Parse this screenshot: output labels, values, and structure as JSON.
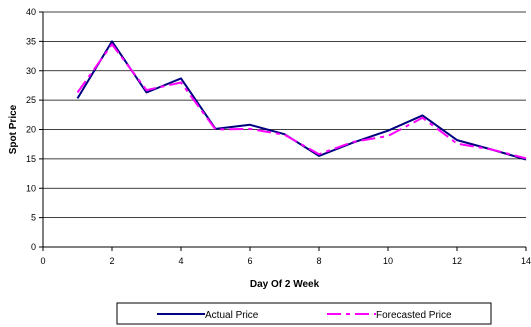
{
  "chart_data": {
    "type": "line",
    "title": "",
    "xlabel": "Day Of 2 Week",
    "ylabel": "Spot Price",
    "xlim": [
      0,
      14
    ],
    "ylim": [
      0,
      40
    ],
    "xticks": [
      0,
      2,
      4,
      6,
      8,
      10,
      12,
      14
    ],
    "yticks": [
      0,
      5,
      10,
      15,
      20,
      25,
      30,
      35,
      40
    ],
    "grid": "horizontal",
    "legend_position": "bottom",
    "series": [
      {
        "name": "Actual Price",
        "color": "#000080",
        "style": "solid",
        "x": [
          1,
          2,
          3,
          4,
          5,
          6,
          7,
          8,
          9,
          10,
          11,
          12,
          13,
          14
        ],
        "y": [
          25.3,
          35,
          26.3,
          28.7,
          20.1,
          20.8,
          19.2,
          15.5,
          17.8,
          19.8,
          22.4,
          18.2,
          16.6,
          14.9
        ]
      },
      {
        "name": "Forecasted Price",
        "color": "#FF00FF",
        "style": "dashed",
        "x": [
          1,
          2,
          3,
          4,
          5,
          6,
          7,
          8,
          9,
          10,
          11,
          12,
          13,
          14
        ],
        "y": [
          26.3,
          34.5,
          26.7,
          28.0,
          20.0,
          20.1,
          19.1,
          15.8,
          17.9,
          18.9,
          22.0,
          17.6,
          16.6,
          15.1
        ]
      }
    ]
  }
}
